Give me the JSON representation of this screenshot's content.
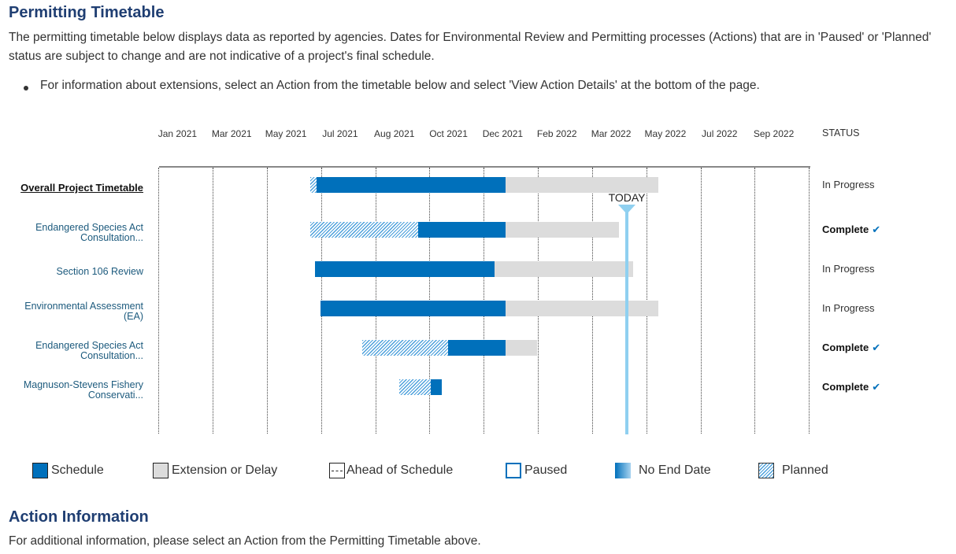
{
  "page": {
    "title": "Permitting Timetable",
    "intro": "The permitting timetable below displays data as reported by agencies. Dates for Environmental Review and Permitting processes (Actions) that are in 'Paused' or 'Planned' status are subject to change and are not indicative of a project's final schedule.",
    "bullet": "For information about extensions, select an Action from the timetable below and select 'View Action Details' at the bottom of the page.",
    "action_info_title": "Action Information",
    "action_info_text": "For additional information, please select an Action from the Permitting Timetable above."
  },
  "legend": [
    {
      "key": "schedule",
      "label": "Schedule"
    },
    {
      "key": "extension",
      "label": "Extension or Delay"
    },
    {
      "key": "ahead",
      "label": "Ahead of Schedule"
    },
    {
      "key": "paused",
      "label": "Paused"
    },
    {
      "key": "noend",
      "label": "No End Date"
    },
    {
      "key": "planned",
      "label": "Planned"
    }
  ],
  "colors": {
    "schedule": "#0070bb",
    "extension": "#dcdcdc",
    "planned": "#4a9fdb",
    "today": "#8fd0f0",
    "heading": "#1f3e72",
    "action_link": "#1c5a7d"
  },
  "chart_data": {
    "type": "gantt",
    "title": "Permitting Timetable",
    "status_header": "STATUS",
    "axis_unit": "timeline column index (0 = Jan 2021 gridline, 12 = chart end)",
    "xlim": [
      0,
      12
    ],
    "tick_labels": [
      "Jan 2021",
      "Mar 2021",
      "May 2021",
      "Jul 2021",
      "Aug 2021",
      "Oct 2021",
      "Dec 2021",
      "Feb 2022",
      "Mar 2022",
      "May 2022",
      "Jul 2022",
      "Sep 2022"
    ],
    "today": {
      "label": "TODAY",
      "x": 8.63
    },
    "rows": [
      {
        "label": "Overall Project Timetable",
        "is_overall": true,
        "status": "In Progress",
        "complete": false,
        "segments": [
          {
            "type": "planned",
            "start": 2.79,
            "end": 2.91
          },
          {
            "type": "schedule",
            "start": 2.91,
            "end": 6.39
          },
          {
            "type": "extension",
            "start": 6.39,
            "end": 9.21
          }
        ]
      },
      {
        "label": "Endangered Species Act\nConsultation...",
        "is_overall": false,
        "status": "Complete",
        "complete": true,
        "segments": [
          {
            "type": "planned",
            "start": 2.79,
            "end": 4.78
          },
          {
            "type": "schedule",
            "start": 4.78,
            "end": 6.39
          },
          {
            "type": "extension",
            "start": 6.39,
            "end": 8.48
          }
        ]
      },
      {
        "label": "Section 106 Review",
        "is_overall": false,
        "status": "In Progress",
        "complete": false,
        "segments": [
          {
            "type": "schedule",
            "start": 2.88,
            "end": 6.19
          },
          {
            "type": "extension",
            "start": 6.19,
            "end": 8.75
          }
        ]
      },
      {
        "label": "Environmental Assessment\n(EA)",
        "is_overall": false,
        "status": "In Progress",
        "complete": false,
        "segments": [
          {
            "type": "schedule",
            "start": 2.98,
            "end": 6.39
          },
          {
            "type": "extension",
            "start": 6.39,
            "end": 9.21
          }
        ]
      },
      {
        "label": "Endangered Species Act\nConsultation...",
        "is_overall": false,
        "status": "Complete",
        "complete": true,
        "segments": [
          {
            "type": "planned",
            "start": 3.75,
            "end": 5.33
          },
          {
            "type": "schedule",
            "start": 5.33,
            "end": 6.39
          },
          {
            "type": "extension",
            "start": 6.39,
            "end": 6.97
          }
        ]
      },
      {
        "label": "Magnuson-Stevens Fishery\nConservati...",
        "is_overall": false,
        "status": "Complete",
        "complete": true,
        "segments": [
          {
            "type": "planned",
            "start": 4.43,
            "end": 5.01
          },
          {
            "type": "schedule",
            "start": 5.01,
            "end": 5.22
          }
        ]
      }
    ]
  }
}
